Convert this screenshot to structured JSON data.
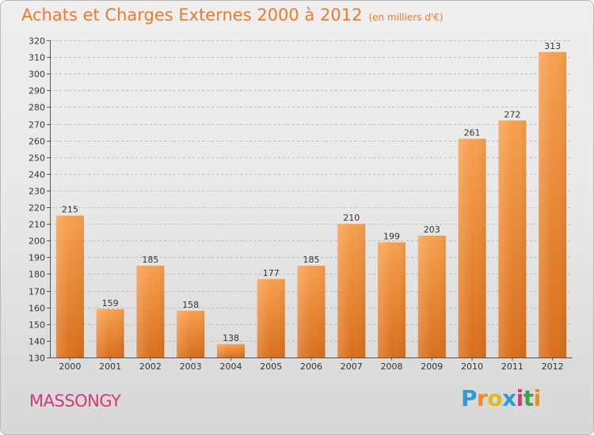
{
  "chart_data": {
    "type": "bar",
    "title": "Achats et Charges Externes 2000 à 2012",
    "subtitle": "(en milliers d'€)",
    "categories": [
      "2000",
      "2001",
      "2002",
      "2003",
      "2004",
      "2005",
      "2006",
      "2007",
      "2008",
      "2009",
      "2010",
      "2011",
      "2012"
    ],
    "values": [
      215,
      159,
      185,
      158,
      138,
      177,
      185,
      210,
      199,
      203,
      261,
      272,
      313
    ],
    "ylim": [
      130,
      320
    ],
    "yticks": [
      130,
      140,
      150,
      160,
      170,
      180,
      190,
      200,
      210,
      220,
      230,
      240,
      250,
      260,
      270,
      280,
      290,
      300,
      310,
      320
    ],
    "grid": true,
    "bar_color": "#f08a30"
  },
  "place_name": "MASSONGY",
  "logo": {
    "letters": [
      "P",
      "r",
      "o",
      "x",
      "i",
      "t",
      "i"
    ],
    "colors": [
      "#2f9ad6",
      "#f08a2a",
      "#e5b81f",
      "#2f9ad6",
      "#d23a78",
      "#3aa24a",
      "#f08a2a"
    ]
  }
}
